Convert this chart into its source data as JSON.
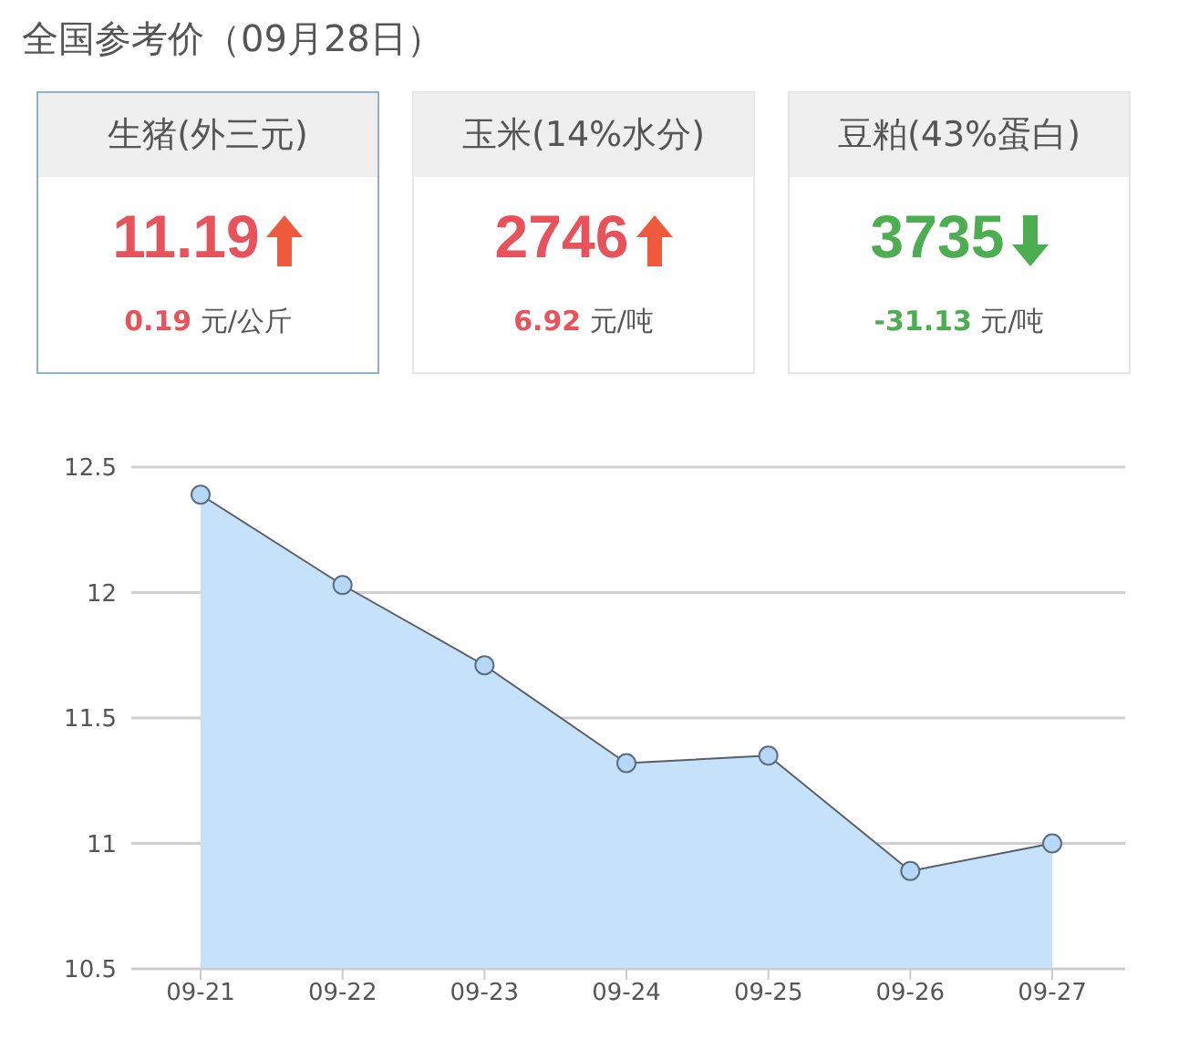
{
  "chart_data": [
    {
      "type": "other",
      "title": "全国参考价（09月28日）",
      "categories": [
        "生猪(外三元)",
        "玉米(14%水分)",
        "豆粕(43%蛋白)"
      ],
      "values": [
        11.19,
        2746,
        3735
      ],
      "data_labels": true,
      "annotations": [
        "0.19 元/公斤",
        "6.92 元/吨",
        "-31.13 元/吨"
      ]
    },
    {
      "type": "area",
      "categories": [
        "09-21",
        "09-22",
        "09-23",
        "09-24",
        "09-25",
        "09-26",
        "09-27"
      ],
      "series": [
        {
          "color": "#c6e2fb",
          "values": [
            12.39,
            12.03,
            11.71,
            11.32,
            11.35,
            10.89,
            11.0
          ]
        }
      ],
      "ylim": [
        10.5,
        12.5
      ],
      "yticks": [
        10.5,
        11,
        11.5,
        12,
        12.5
      ],
      "grid": "y",
      "marker": "circle",
      "line_style": "solid"
    }
  ]
}
